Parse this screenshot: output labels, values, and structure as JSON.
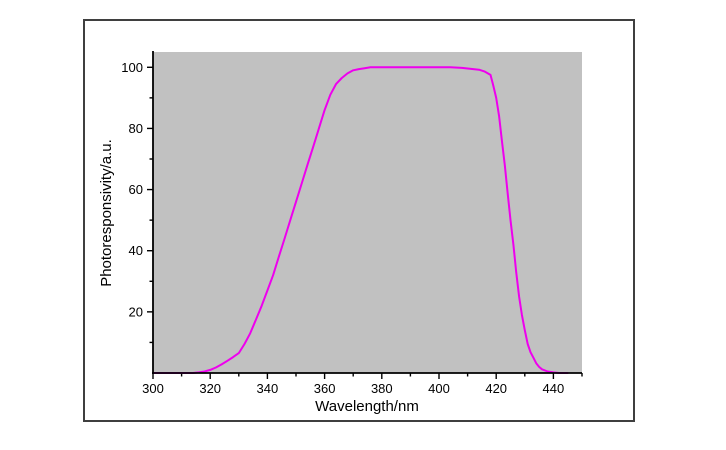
{
  "chart_data": {
    "type": "line",
    "title": "",
    "xlabel": "Wavelength/nm",
    "ylabel": "Photoresponsivity/a.u.",
    "xlim": [
      300,
      450
    ],
    "ylim": [
      0,
      105
    ],
    "x_major_ticks": [
      300,
      320,
      340,
      360,
      380,
      400,
      420,
      440
    ],
    "x_minor_ticks": [
      310,
      330,
      350,
      370,
      390,
      410,
      430,
      450
    ],
    "y_major_ticks": [
      20,
      40,
      60,
      80,
      100
    ],
    "y_minor_ticks": [
      10,
      30,
      50,
      70,
      90
    ],
    "grid": "off",
    "legend": "none",
    "line_color": "#ee00ee",
    "plot_bg_color": "#c1c1c1",
    "axis_color": "#000000",
    "series": [
      {
        "name": "photoresponsivity",
        "x": [
          300,
          305,
          310,
          314,
          316,
          318,
          320,
          322,
          324,
          326,
          328,
          330,
          332,
          334,
          336,
          338,
          340,
          342,
          344,
          346,
          348,
          350,
          352,
          354,
          356,
          358,
          360,
          362,
          364,
          366,
          368,
          370,
          372,
          374,
          376,
          380,
          384,
          388,
          392,
          396,
          400,
          404,
          408,
          412,
          414,
          416,
          418,
          419,
          420,
          421,
          422,
          423,
          424,
          425,
          426,
          427,
          428,
          429,
          430,
          431,
          432,
          433,
          434,
          435,
          436,
          438,
          440,
          442,
          445
        ],
        "y": [
          0,
          0,
          0,
          0,
          0.2,
          0.5,
          1,
          1.8,
          2.8,
          4,
          5.2,
          6.5,
          9.5,
          13,
          17.5,
          22,
          27,
          32,
          38,
          44,
          50,
          56,
          62,
          68,
          74,
          80,
          86,
          91,
          94.5,
          96.5,
          98,
          99,
          99.4,
          99.7,
          100,
          100,
          100,
          100,
          100,
          100,
          100,
          100,
          99.8,
          99.4,
          99.2,
          98.6,
          97.5,
          94,
          90,
          84,
          76,
          68,
          59,
          50,
          42,
          33,
          25,
          19,
          14,
          9.5,
          6.8,
          5,
          3.2,
          2,
          1.2,
          0.5,
          0.2,
          0,
          0
        ]
      }
    ]
  }
}
